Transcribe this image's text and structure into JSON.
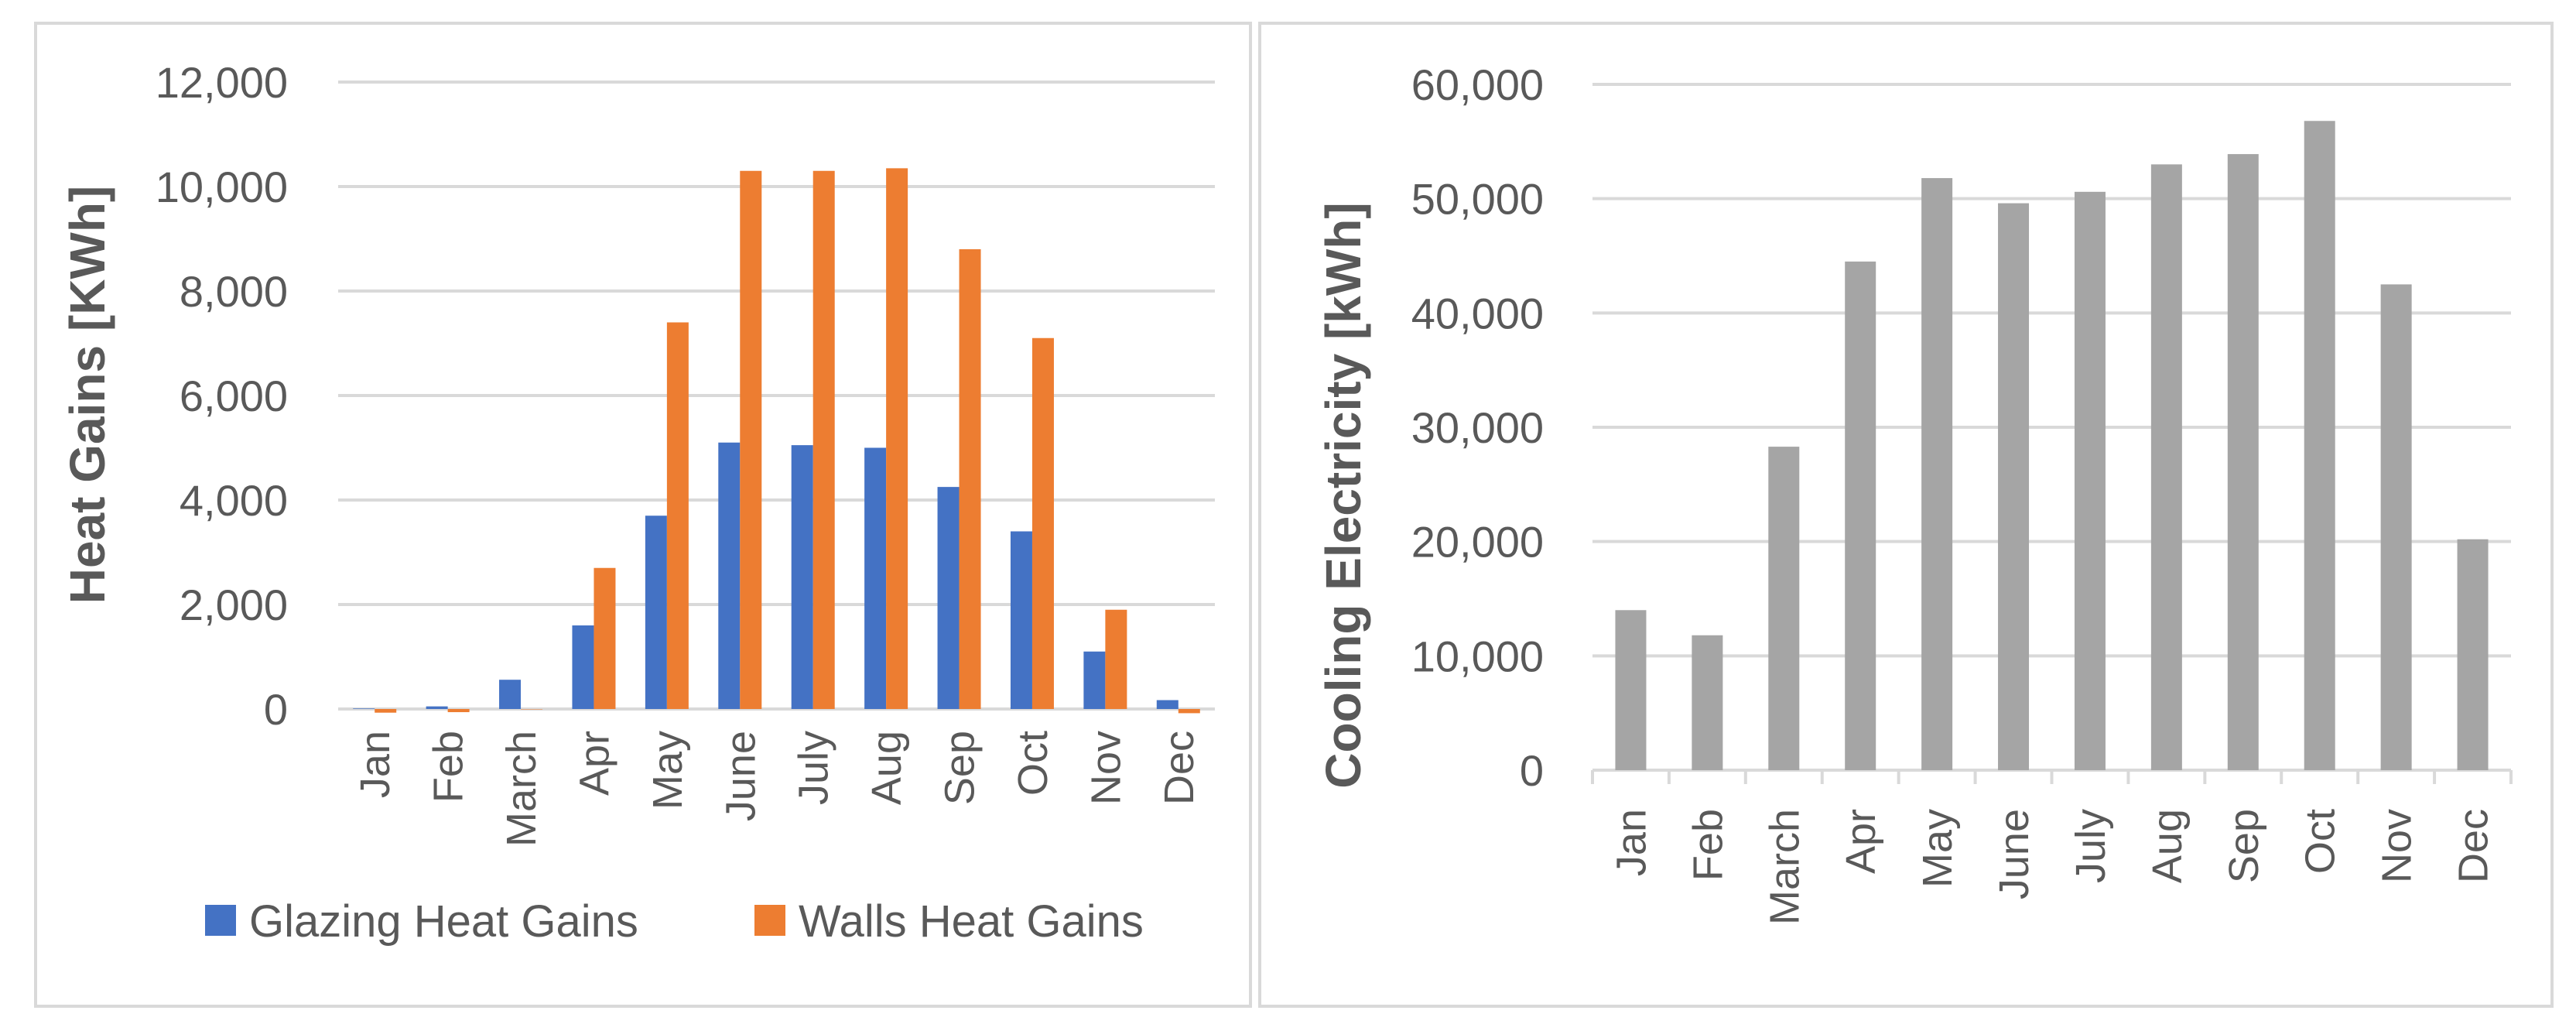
{
  "chart_data": [
    {
      "type": "bar",
      "title": "",
      "xlabel": "",
      "ylabel": "Heat Gains [KWh]",
      "ylim": [
        0,
        12000
      ],
      "yticks": [
        "0",
        "2,000",
        "4,000",
        "6,000",
        "8,000",
        "10,000",
        "12,000"
      ],
      "categories": [
        "Jan",
        "Feb",
        "March",
        "Apr",
        "May",
        "June",
        "July",
        "Aug",
        "Sep",
        "Oct",
        "Nov",
        "Dec"
      ],
      "grid": true,
      "legend_position": "bottom",
      "series": [
        {
          "name": "Glazing Heat Gains",
          "color": "#4472C4",
          "values": [
            10,
            50,
            560,
            1600,
            3700,
            5100,
            5050,
            5000,
            4250,
            3400,
            1100,
            170
          ]
        },
        {
          "name": "Walls Heat Gains",
          "color": "#ED7D31",
          "values": [
            -70,
            -60,
            0,
            2700,
            7400,
            10300,
            10300,
            10350,
            8800,
            7100,
            1900,
            -80
          ]
        }
      ]
    },
    {
      "type": "bar",
      "title": "",
      "xlabel": "",
      "ylabel": "Cooling Electricity [kWh]",
      "ylim": [
        0,
        60000
      ],
      "yticks": [
        "0",
        "10,000",
        "20,000",
        "30,000",
        "40,000",
        "50,000",
        "60,000"
      ],
      "categories": [
        "Jan",
        "Feb",
        "March",
        "Apr",
        "May",
        "June",
        "July",
        "Aug",
        "Sep",
        "Oct",
        "Nov",
        "Dec"
      ],
      "grid": true,
      "series": [
        {
          "name": "Cooling Electricity",
          "color": "#A5A5A5",
          "values": [
            14000,
            11800,
            28300,
            44500,
            51800,
            49600,
            50600,
            53000,
            53900,
            56800,
            42500,
            20200
          ]
        }
      ]
    }
  ],
  "colors": {
    "grid": "#d9d9d9",
    "text": "#595959",
    "frame": "#d9d9d9"
  }
}
